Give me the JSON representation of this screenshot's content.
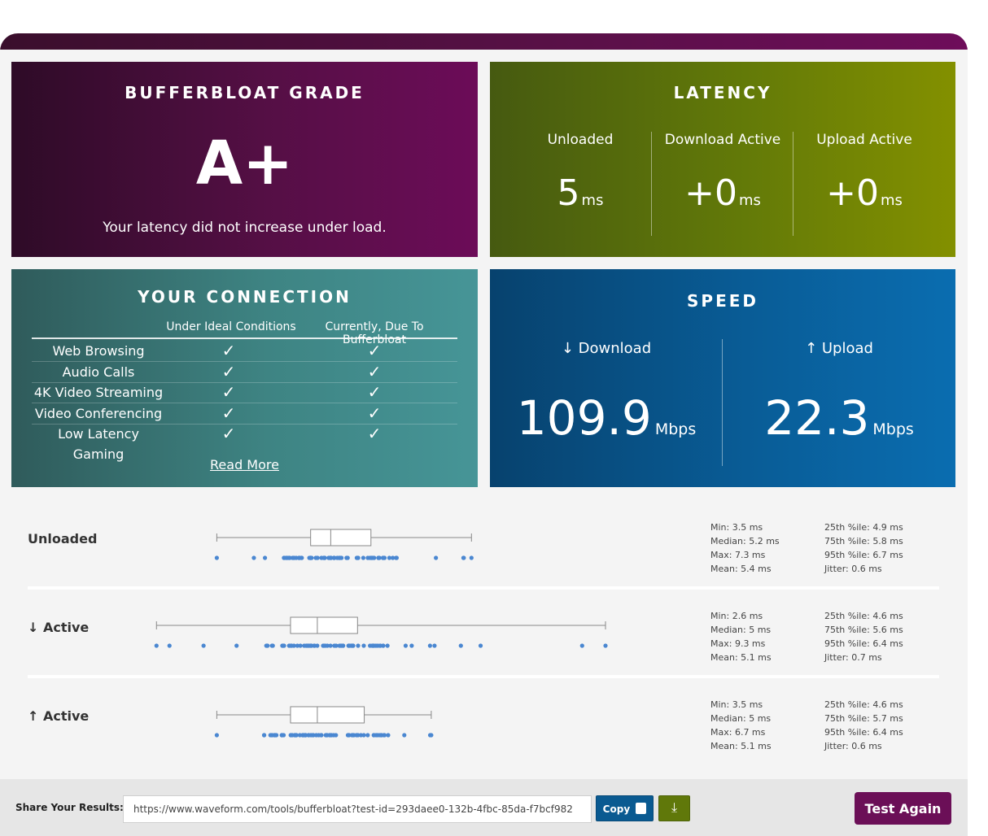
{
  "grade": {
    "title": "BUFFERBLOAT GRADE",
    "value": "A+",
    "message": "Your latency did not increase under load."
  },
  "latency": {
    "title": "LATENCY",
    "columns": [
      {
        "label": "Unloaded",
        "value": "5",
        "unit": "ms"
      },
      {
        "label": "Download Active",
        "value": "+0",
        "unit": "ms"
      },
      {
        "label": "Upload Active",
        "value": "+0",
        "unit": "ms"
      }
    ]
  },
  "connection": {
    "title": "YOUR CONNECTION",
    "col_ideal": "Under Ideal Conditions",
    "col_current": "Currently, Due To Bufferbloat",
    "check_glyph": "✓",
    "rows": [
      {
        "name": "Web Browsing"
      },
      {
        "name": "Audio Calls"
      },
      {
        "name": "4K Video Streaming"
      },
      {
        "name": "Video Conferencing"
      },
      {
        "name": "Low Latency Gaming"
      }
    ],
    "read_more": "Read More"
  },
  "speed": {
    "title": "SPEED",
    "download": {
      "label": "↓ Download",
      "value": "109.9",
      "unit": "Mbps"
    },
    "upload": {
      "label": "↑ Upload",
      "value": "22.3",
      "unit": "Mbps"
    }
  },
  "stats": {
    "axis_ms_range": [
      1.2,
      9.3
    ],
    "colors": {
      "box_stroke": "#888888",
      "dot": "#4a87d1"
    },
    "rows": [
      {
        "label": "Unloaded",
        "min": 3.5,
        "q1": 4.9,
        "median": 5.2,
        "q3": 5.8,
        "max": 7.3,
        "left": [
          "Min: 3.5 ms",
          "Median: 5.2 ms",
          "Max: 7.3 ms",
          "Mean: 5.4 ms"
        ],
        "right": [
          "25th %ile: 4.9 ms",
          "75th %ile: 5.8 ms",
          "95th %ile: 6.7 ms",
          "Jitter: 0.6 ms"
        ]
      },
      {
        "label": "↓ Active",
        "min": 2.6,
        "q1": 4.6,
        "median": 5.0,
        "q3": 5.6,
        "max": 9.3,
        "left": [
          "Min: 2.6 ms",
          "Median: 5 ms",
          "Max: 9.3 ms",
          "Mean: 5.1 ms"
        ],
        "right": [
          "25th %ile: 4.6 ms",
          "75th %ile: 5.6 ms",
          "95th %ile: 6.4 ms",
          "Jitter: 0.7 ms"
        ]
      },
      {
        "label": "↑ Active",
        "min": 3.5,
        "q1": 4.6,
        "median": 5.0,
        "q3": 5.7,
        "max": 6.7,
        "left": [
          "Min: 3.5 ms",
          "Median: 5 ms",
          "Max: 6.7 ms",
          "Mean: 5.1 ms"
        ],
        "right": [
          "25th %ile: 4.6 ms",
          "75th %ile: 5.7 ms",
          "95th %ile: 6.4 ms",
          "Jitter: 0.6 ms"
        ]
      }
    ]
  },
  "share": {
    "label": "Share Your Results:",
    "url": "https://www.waveform.com/tools/bufferbloat?test-id=293daee0-132b-4fbc-85da-f7bcf982",
    "copy_label": "Copy",
    "copy_icon": "copy-icon",
    "download_icon": "download-icon",
    "test_again": "Test Again"
  }
}
